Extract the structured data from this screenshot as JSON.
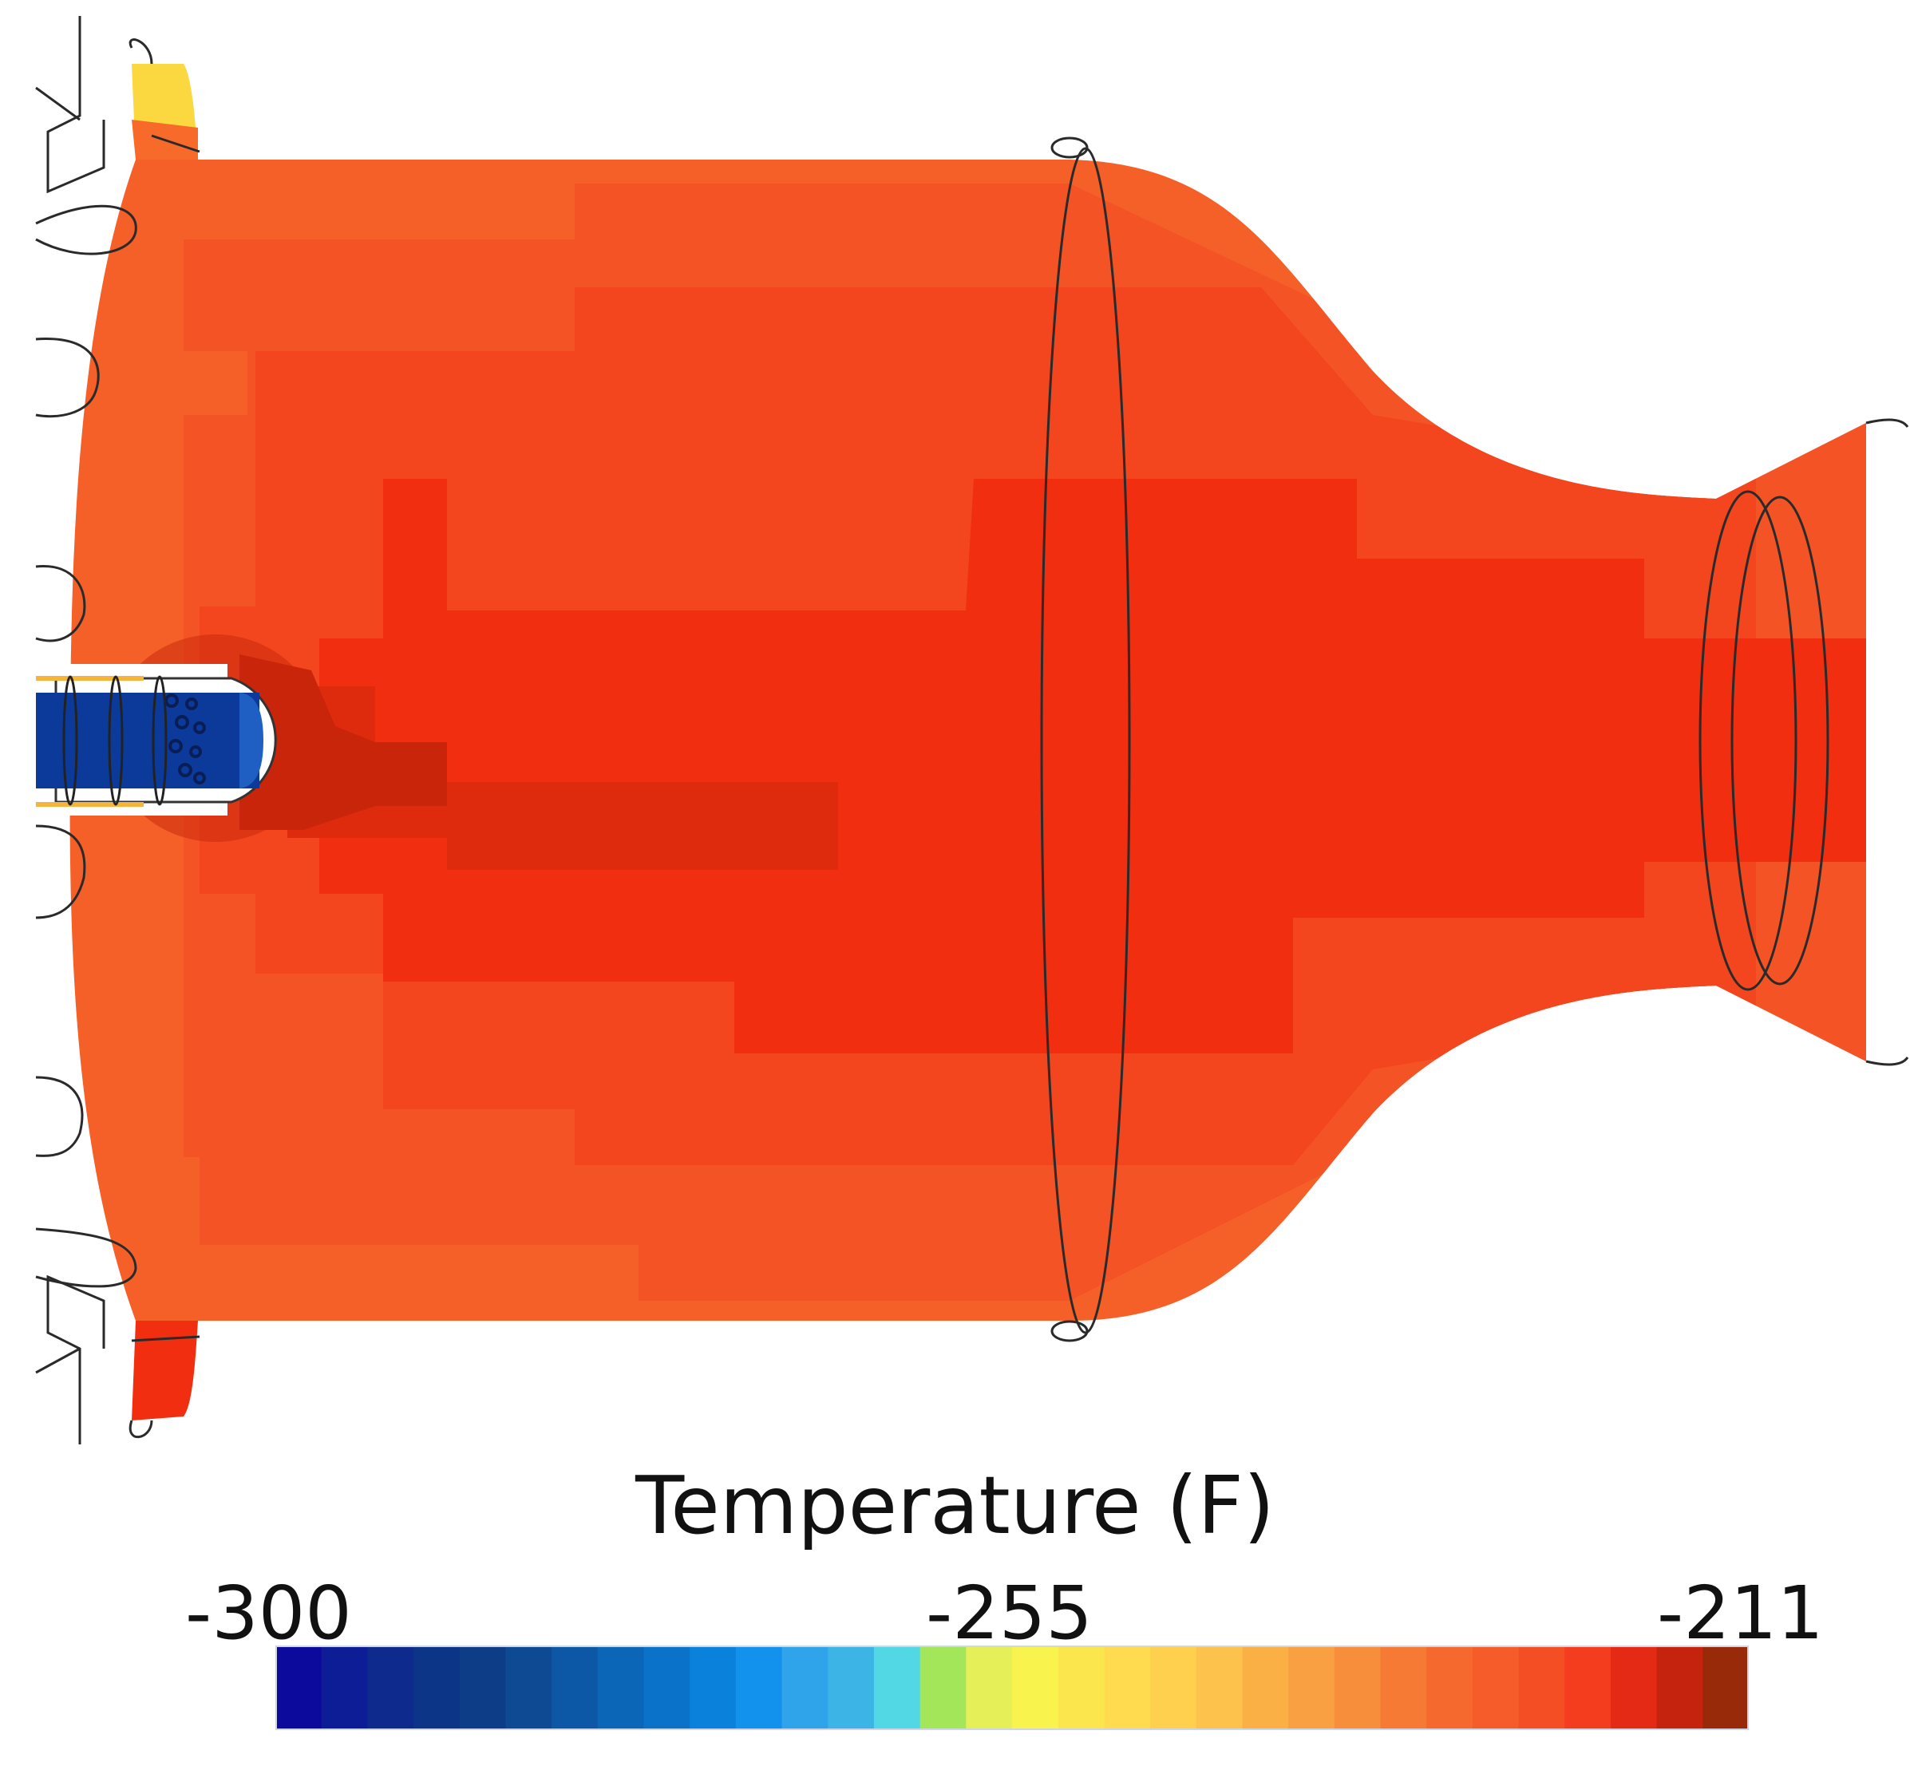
{
  "colorbar": {
    "title": "Temperature (F)",
    "tick_min": "-300",
    "tick_mid": "-255",
    "tick_max": "-211",
    "colors": [
      "#0b0a9c",
      "#0d1d95",
      "#0d2a8c",
      "#0c3487",
      "#0c3d86",
      "#0d4a93",
      "#0c58a6",
      "#0b66b8",
      "#0a72c8",
      "#0a82db",
      "#1292ec",
      "#2fa4ea",
      "#3cb4e5",
      "#52d8e4",
      "#a3e65a",
      "#e5ef57",
      "#f9f44d",
      "#fce64e",
      "#fedb4f",
      "#fed04e",
      "#fcc24c",
      "#fbb046",
      "#f9a043",
      "#f78e3c",
      "#f67a33",
      "#f5692e",
      "#f55c29",
      "#f44e25",
      "#f43c1f",
      "#e42915",
      "#c6230e",
      "#982a0a"
    ]
  },
  "field_colors": {
    "wall": "#f55f28",
    "outer": "#f45425",
    "mid": "#f3461e",
    "core": "#f12e10",
    "wake": "#de2a0d",
    "hot": "#c8250a",
    "injector": "#0b3a9a",
    "yellow": "#fbd740"
  }
}
